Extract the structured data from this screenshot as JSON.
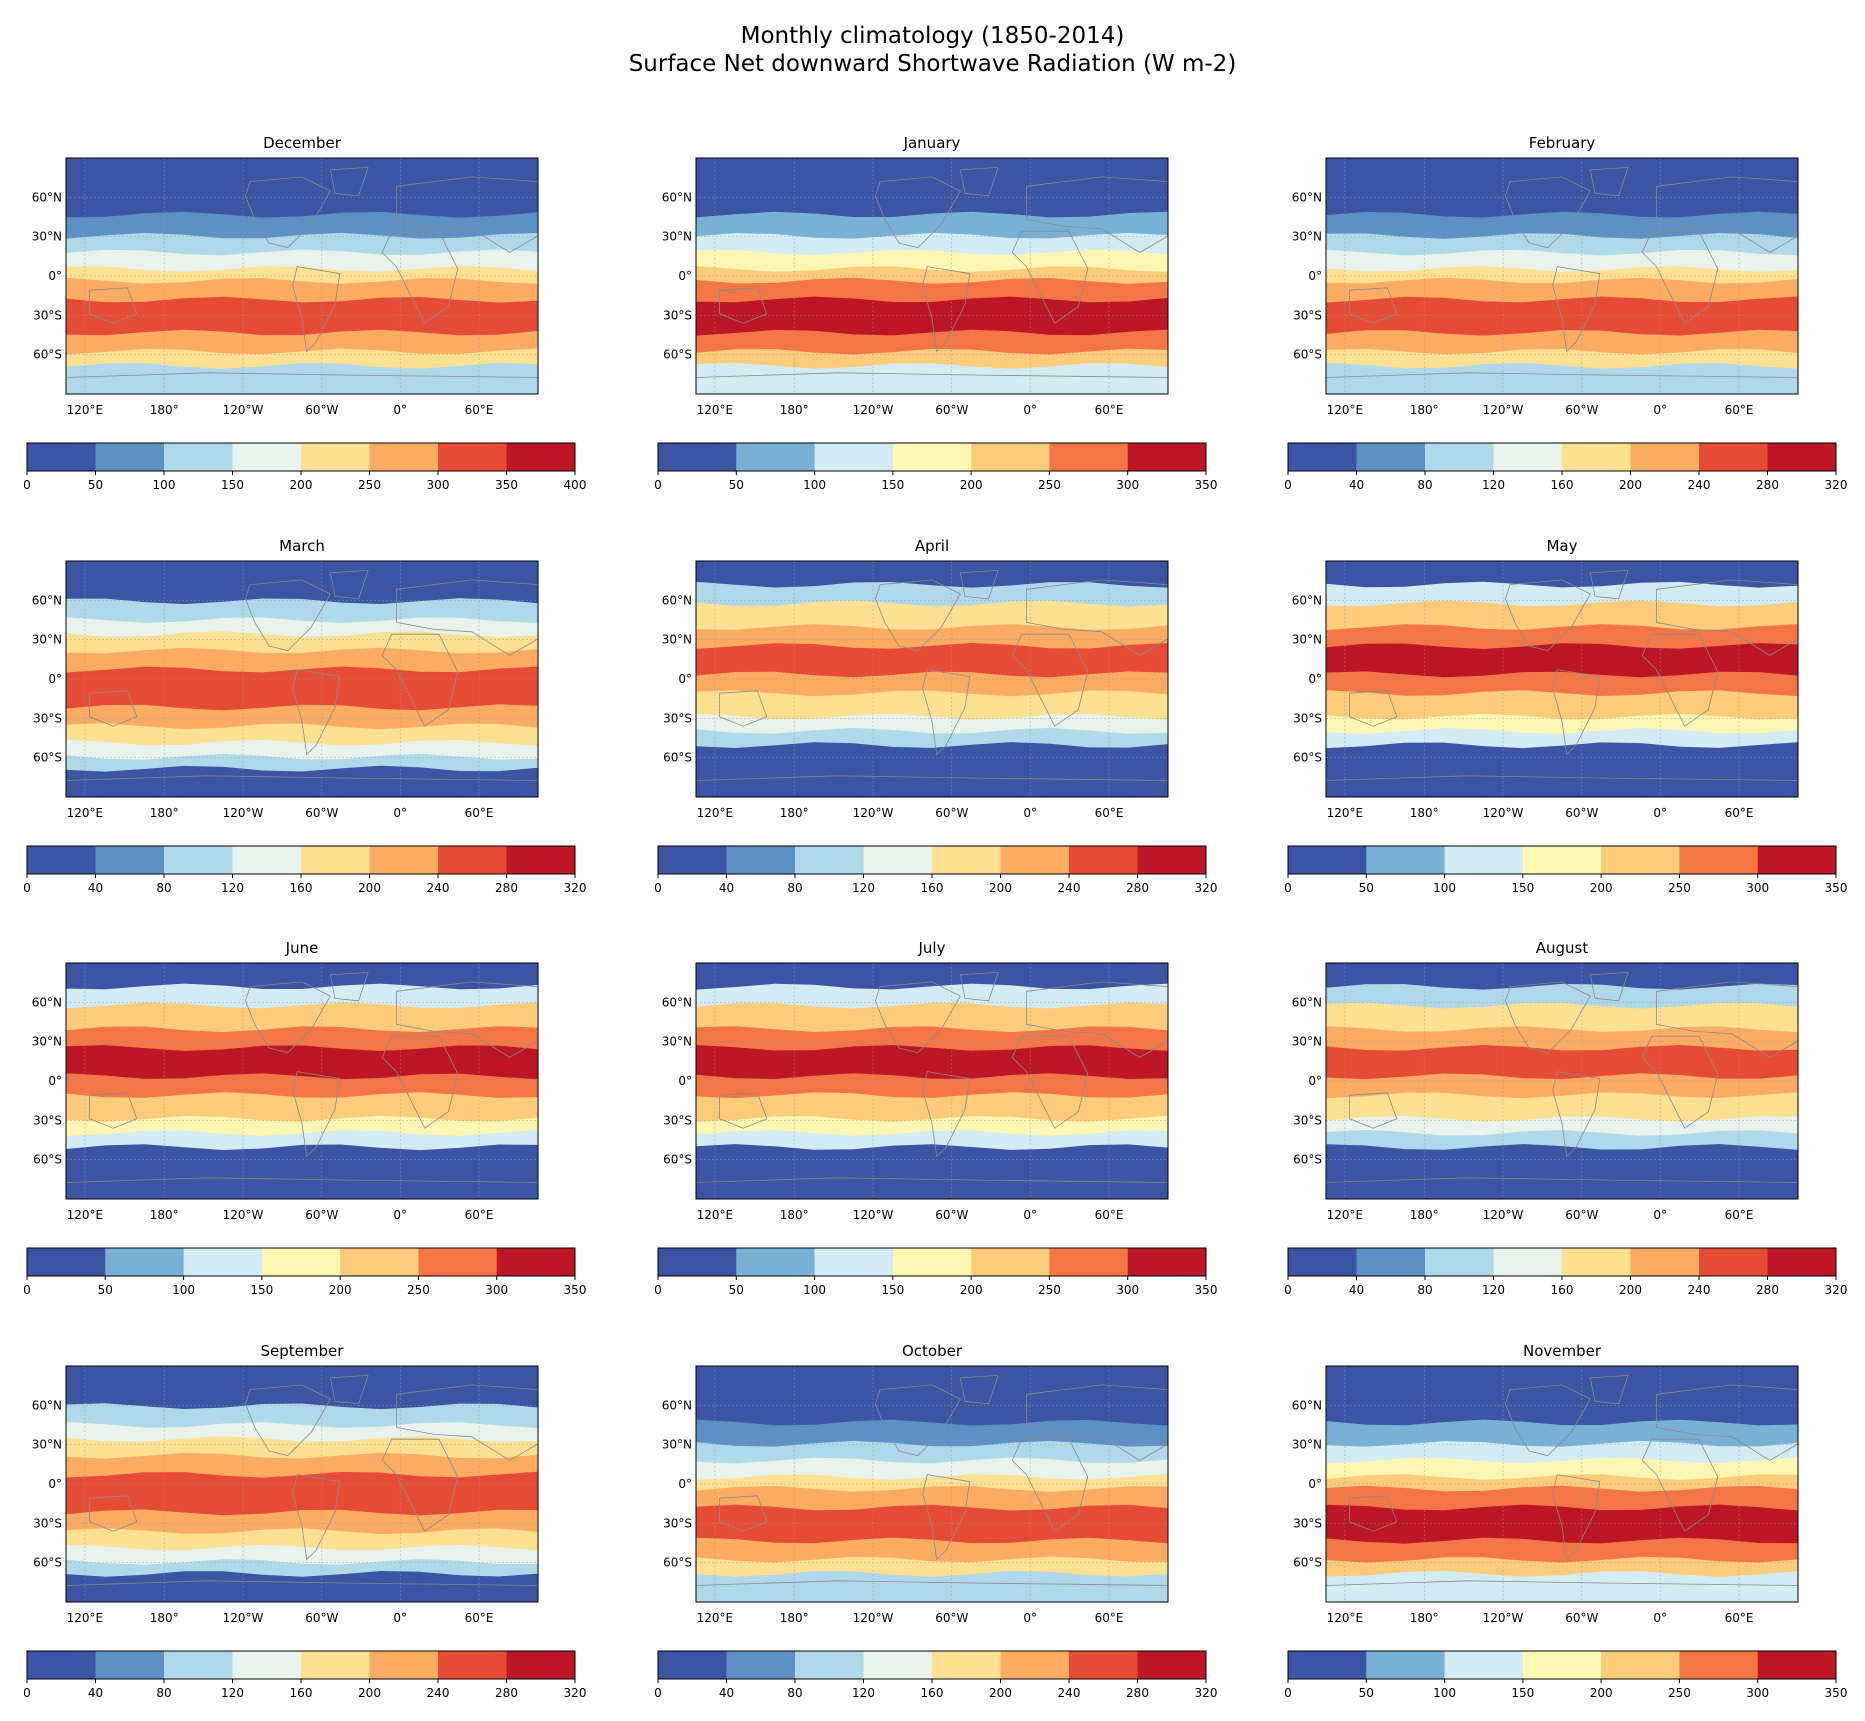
{
  "figure": {
    "title_line1": "Monthly climatology (1850-2014)",
    "title_line2": "Surface Net downward Shortwave Radiation (W m-2)"
  },
  "axes": {
    "lat_ticks": [
      "60°N",
      "30°N",
      "0°",
      "30°S",
      "60°S"
    ],
    "lon_ticks": [
      "120°E",
      "180°",
      "120°W",
      "60°W",
      "0°",
      "60°E"
    ]
  },
  "palettes": {
    "eight": [
      "#3b54a3",
      "#5e8fc5",
      "#afd8e9",
      "#e7f3ec",
      "#fee092",
      "#fbab62",
      "#e64b35",
      "#bd1727"
    ],
    "seven": [
      "#3b54a3",
      "#79b0d5",
      "#d3ebf3",
      "#fef7b3",
      "#fdcc7a",
      "#f47646",
      "#bd1727"
    ]
  },
  "panels": [
    {
      "month": "December",
      "ticks": [
        "0",
        "50",
        "100",
        "150",
        "200",
        "250",
        "300",
        "350",
        "400"
      ],
      "palette": "eight",
      "pattern": "south"
    },
    {
      "month": "January",
      "ticks": [
        "0",
        "50",
        "100",
        "150",
        "200",
        "250",
        "300",
        "350"
      ],
      "palette": "seven",
      "pattern": "south"
    },
    {
      "month": "February",
      "ticks": [
        "0",
        "40",
        "80",
        "120",
        "160",
        "200",
        "240",
        "280",
        "320"
      ],
      "palette": "eight",
      "pattern": "south"
    },
    {
      "month": "March",
      "ticks": [
        "0",
        "40",
        "80",
        "120",
        "160",
        "200",
        "240",
        "280",
        "320"
      ],
      "palette": "eight",
      "pattern": "equinox"
    },
    {
      "month": "April",
      "ticks": [
        "0",
        "40",
        "80",
        "120",
        "160",
        "200",
        "240",
        "280",
        "320"
      ],
      "palette": "eight",
      "pattern": "north"
    },
    {
      "month": "May",
      "ticks": [
        "0",
        "50",
        "100",
        "150",
        "200",
        "250",
        "300",
        "350"
      ],
      "palette": "seven",
      "pattern": "north"
    },
    {
      "month": "June",
      "ticks": [
        "0",
        "50",
        "100",
        "150",
        "200",
        "250",
        "300",
        "350"
      ],
      "palette": "seven",
      "pattern": "north"
    },
    {
      "month": "July",
      "ticks": [
        "0",
        "50",
        "100",
        "150",
        "200",
        "250",
        "300",
        "350"
      ],
      "palette": "seven",
      "pattern": "north"
    },
    {
      "month": "August",
      "ticks": [
        "0",
        "40",
        "80",
        "120",
        "160",
        "200",
        "240",
        "280",
        "320"
      ],
      "palette": "eight",
      "pattern": "north"
    },
    {
      "month": "September",
      "ticks": [
        "0",
        "40",
        "80",
        "120",
        "160",
        "200",
        "240",
        "280",
        "320"
      ],
      "palette": "eight",
      "pattern": "equinox"
    },
    {
      "month": "October",
      "ticks": [
        "0",
        "40",
        "80",
        "120",
        "160",
        "200",
        "240",
        "280",
        "320"
      ],
      "palette": "eight",
      "pattern": "south"
    },
    {
      "month": "November",
      "ticks": [
        "0",
        "50",
        "100",
        "150",
        "200",
        "250",
        "300",
        "350"
      ],
      "palette": "seven",
      "pattern": "south"
    }
  ]
}
